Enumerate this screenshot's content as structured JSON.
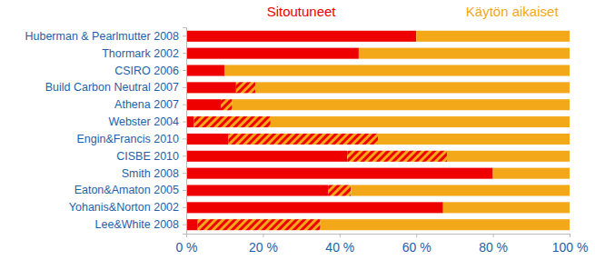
{
  "chart_data": {
    "type": "bar",
    "orientation": "horizontal",
    "stacked": true,
    "categories": [
      "Huberman & Pearlmutter 2008",
      "Thormark 2002",
      "CSIRO 2006",
      "Build Carbon Neutral 2007",
      "Athena 2007",
      "Webster 2004",
      "Engin&Francis 2010",
      "CISBE 2010",
      "Smith 2008",
      "Eaton&Amaton 2005",
      "Yohanis&Norton 2002",
      "Lee&White 2008"
    ],
    "series": [
      {
        "name": "Sitoutuneet",
        "color": "#ee0000",
        "values": [
          60,
          45,
          10,
          13,
          9,
          2,
          11,
          42,
          80,
          37,
          67,
          3
        ]
      },
      {
        "color": "#ee0000",
        "line_style": "hatched",
        "values": [
          0,
          0,
          0,
          5,
          3,
          20,
          39,
          26,
          0,
          6,
          0,
          32
        ]
      },
      {
        "name": "Käytön aikaiset",
        "color": "#f2a818",
        "values": [
          40,
          55,
          90,
          82,
          88,
          78,
          50,
          32,
          20,
          57,
          33,
          65
        ]
      }
    ],
    "xlim": [
      0,
      100
    ],
    "xticks": [
      {
        "value": 0,
        "label": "0 %"
      },
      {
        "value": 20,
        "label": "20 %"
      },
      {
        "value": 40,
        "label": "40 %"
      },
      {
        "value": 60,
        "label": "60 %"
      },
      {
        "value": 80,
        "label": "80 %"
      },
      {
        "value": 100,
        "label": "100 %"
      }
    ],
    "grid": false
  }
}
